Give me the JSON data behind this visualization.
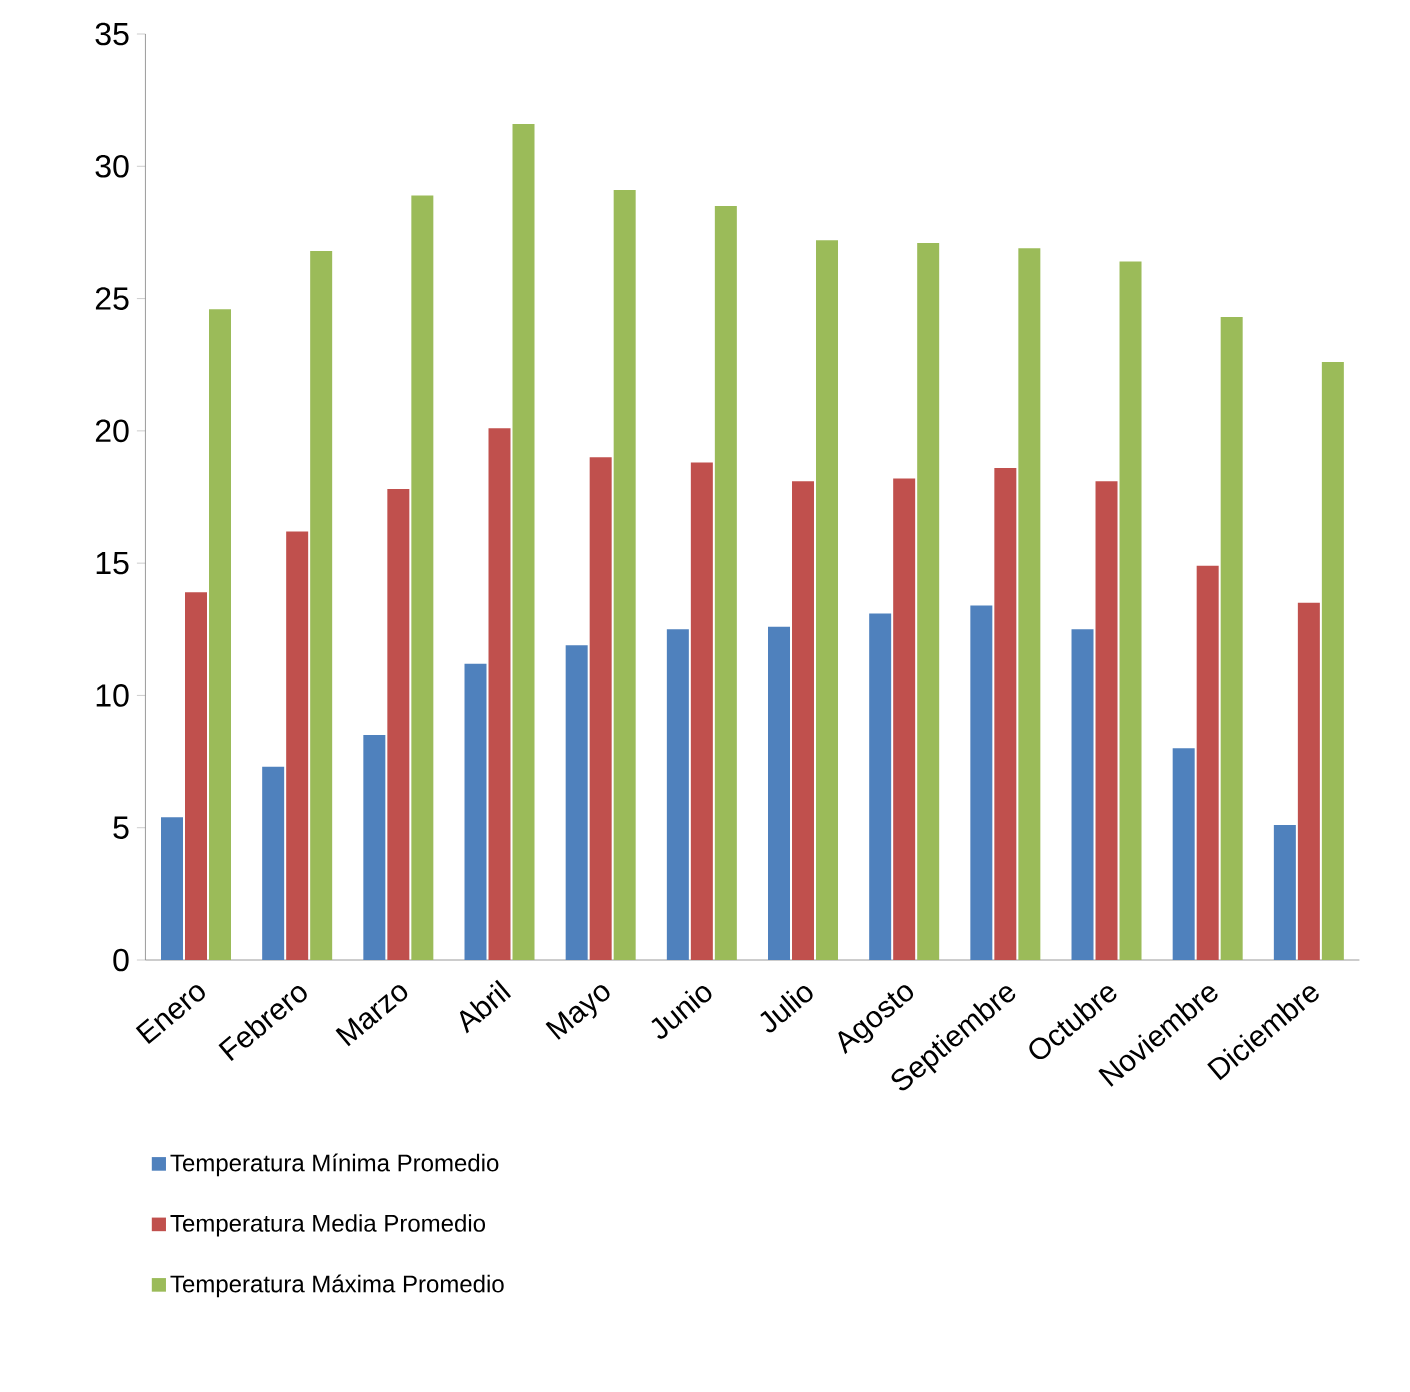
{
  "chart_data": {
    "type": "bar",
    "categories": [
      "Enero",
      "Febrero",
      "Marzo",
      "Abril",
      "Mayo",
      "Junio",
      "Julio",
      "Agosto",
      "Septiembre",
      "Octubre",
      "Noviembre",
      "Diciembre"
    ],
    "series": [
      {
        "name": "Temperatura Mínima Promedio",
        "color": "#4f81bd",
        "values": [
          5.4,
          7.3,
          8.5,
          11.2,
          11.9,
          12.5,
          12.6,
          13.1,
          13.4,
          12.5,
          8.0,
          5.1
        ]
      },
      {
        "name": "Temperatura Media  Promedio",
        "color": "#c0504d",
        "values": [
          13.9,
          16.2,
          17.8,
          20.1,
          19.0,
          18.8,
          18.1,
          18.2,
          18.6,
          18.1,
          14.9,
          13.5
        ]
      },
      {
        "name": "Temperatura Máxima Promedio",
        "color": "#9bbb59",
        "values": [
          24.6,
          26.8,
          28.9,
          31.6,
          29.1,
          28.5,
          27.2,
          27.1,
          26.9,
          26.4,
          24.3,
          22.6
        ]
      }
    ],
    "ylim": [
      0,
      35
    ],
    "yticks": [
      0,
      5,
      10,
      15,
      20,
      25,
      30,
      35
    ],
    "grid": false,
    "legend": "bottom left"
  }
}
